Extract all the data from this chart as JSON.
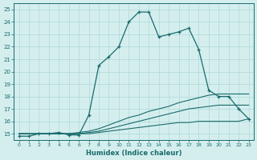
{
  "xlabel": "Humidex (Indice chaleur)",
  "bg_color": "#d4eeee",
  "line_color": "#1a6b6b",
  "grid_color": "#b0d8d8",
  "xlim": [
    -0.5,
    23.5
  ],
  "ylim": [
    14.5,
    25.5
  ],
  "line1_x": [
    0,
    1,
    2,
    3,
    4,
    5,
    6,
    7,
    8,
    9,
    10,
    11,
    12,
    13,
    14,
    15,
    16,
    17,
    18,
    19,
    20,
    21,
    22,
    23
  ],
  "line1_y": [
    14.8,
    14.8,
    15.0,
    15.0,
    15.1,
    14.9,
    14.9,
    16.5,
    20.5,
    21.2,
    22.0,
    24.0,
    24.8,
    24.8,
    22.8,
    23.0,
    23.2,
    23.5,
    21.8,
    18.5,
    18.0,
    18.0,
    17.0,
    16.2
  ],
  "line2_x": [
    0,
    1,
    2,
    3,
    4,
    5,
    6,
    7,
    8,
    9,
    10,
    11,
    12,
    13,
    14,
    15,
    16,
    17,
    18,
    19,
    20,
    21,
    22,
    23
  ],
  "line2_y": [
    15.0,
    15.0,
    15.0,
    15.0,
    15.0,
    15.0,
    15.1,
    15.2,
    15.4,
    15.7,
    16.0,
    16.3,
    16.5,
    16.8,
    17.0,
    17.2,
    17.5,
    17.7,
    17.9,
    18.1,
    18.2,
    18.2,
    18.2,
    18.2
  ],
  "line3_x": [
    0,
    1,
    2,
    3,
    4,
    5,
    6,
    7,
    8,
    9,
    10,
    11,
    12,
    13,
    14,
    15,
    16,
    17,
    18,
    19,
    20,
    21,
    22,
    23
  ],
  "line3_y": [
    15.0,
    15.0,
    15.0,
    15.0,
    15.0,
    15.0,
    15.0,
    15.1,
    15.2,
    15.4,
    15.6,
    15.8,
    16.0,
    16.2,
    16.4,
    16.6,
    16.8,
    17.0,
    17.1,
    17.2,
    17.3,
    17.3,
    17.3,
    17.3
  ],
  "line4_x": [
    0,
    1,
    2,
    3,
    4,
    5,
    6,
    7,
    8,
    9,
    10,
    11,
    12,
    13,
    14,
    15,
    16,
    17,
    18,
    19,
    20,
    21,
    22,
    23
  ],
  "line4_y": [
    15.0,
    15.0,
    15.0,
    15.0,
    15.0,
    15.0,
    15.0,
    15.0,
    15.1,
    15.2,
    15.3,
    15.4,
    15.5,
    15.6,
    15.7,
    15.8,
    15.9,
    15.9,
    16.0,
    16.0,
    16.0,
    16.0,
    16.0,
    16.2
  ]
}
